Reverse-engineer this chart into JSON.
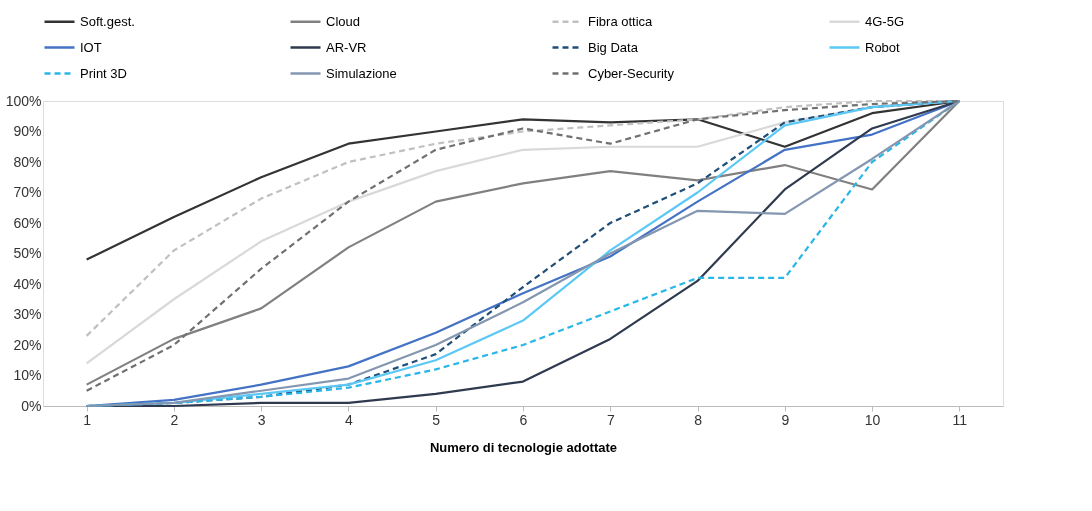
{
  "chart_data": {
    "type": "line",
    "xlabel": "Numero di tecnologie adottate",
    "categories": [
      "1",
      "2",
      "3",
      "4",
      "5",
      "6",
      "7",
      "8",
      "9",
      "10",
      "11"
    ],
    "ylim": [
      0,
      100
    ],
    "yticks": [
      {
        "value": 0,
        "label": "0%"
      },
      {
        "value": 10,
        "label": "10%"
      },
      {
        "value": 20,
        "label": "20%"
      },
      {
        "value": 30,
        "label": "30%"
      },
      {
        "value": 40,
        "label": "40%"
      },
      {
        "value": 50,
        "label": "50%"
      },
      {
        "value": 60,
        "label": "60%"
      },
      {
        "value": 70,
        "label": "70%"
      },
      {
        "value": 80,
        "label": "80%"
      },
      {
        "value": 90,
        "label": "90%"
      },
      {
        "value": 100,
        "label": "100%"
      }
    ],
    "grid": false,
    "legend": "top",
    "marker": "none",
    "series": [
      {
        "name": "Soft.gest.",
        "color": "#333333",
        "line_style": "solid",
        "values": [
          48,
          62,
          75,
          86,
          90,
          94,
          93,
          94,
          85,
          96,
          100
        ]
      },
      {
        "name": "Cloud",
        "color": "#808080",
        "line_style": "solid",
        "values": [
          7,
          22,
          32,
          52,
          67,
          73,
          77,
          74,
          79,
          71,
          100
        ]
      },
      {
        "name": "Fibra ottica",
        "color": "#c0c0c0",
        "line_style": "dashed",
        "values": [
          23,
          51,
          68,
          80,
          86,
          90,
          92,
          94,
          98,
          100,
          100
        ]
      },
      {
        "name": "4G-5G",
        "color": "#d9d9d9",
        "line_style": "solid",
        "values": [
          14,
          35,
          54,
          67,
          77,
          84,
          85,
          85,
          93,
          98,
          100
        ]
      },
      {
        "name": "IOT",
        "color": "#4472c4",
        "line_style": "solid",
        "values": [
          0,
          2,
          7,
          13,
          24,
          37,
          49,
          67,
          84,
          89,
          100
        ]
      },
      {
        "name": "AR-VR",
        "color": "#2f3a4f",
        "line_style": "solid",
        "values": [
          0,
          0,
          1,
          1,
          4,
          8,
          22,
          41,
          71,
          91,
          100
        ]
      },
      {
        "name": "Big Data",
        "color": "#1f4e79",
        "line_style": "dashed",
        "values": [
          0,
          1,
          3,
          7,
          17,
          39,
          60,
          73,
          93,
          98,
          100
        ]
      },
      {
        "name": "Robot",
        "color": "#5bc8f5",
        "line_style": "solid",
        "values": [
          0,
          1,
          4,
          7,
          15,
          28,
          51,
          70,
          92,
          98,
          100
        ]
      },
      {
        "name": "Print 3D",
        "color": "#29b6e8",
        "line_style": "dashed",
        "values": [
          0,
          1,
          3,
          6,
          12,
          20,
          31,
          42,
          42,
          80,
          100
        ]
      },
      {
        "name": "Simulazione",
        "color": "#8496b0",
        "line_style": "solid",
        "values": [
          0,
          1,
          5,
          9,
          20,
          34,
          50,
          64,
          63,
          81,
          100
        ]
      },
      {
        "name": "Cyber-Security",
        "color": "#707070",
        "line_style": "dashed",
        "values": [
          5,
          20,
          45,
          67,
          84,
          91,
          86,
          94,
          97,
          99,
          100
        ]
      }
    ]
  }
}
